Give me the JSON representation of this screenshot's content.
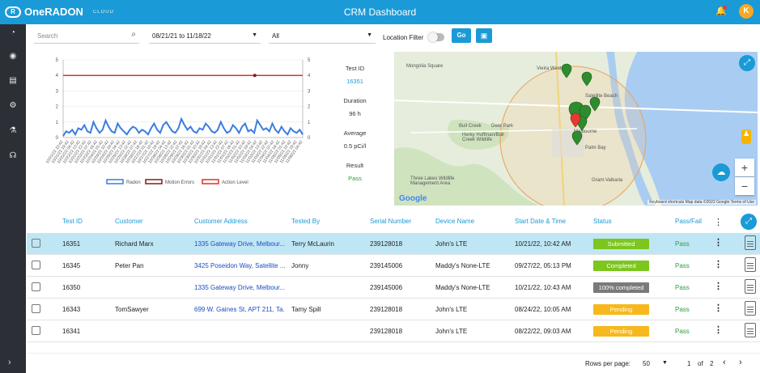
{
  "app": {
    "brand": "OneRADON",
    "brand_sub": "CLOUD",
    "title": "CRM Dashboard",
    "avatar_initial": "K"
  },
  "filters": {
    "search_placeholder": "Search",
    "date_range": "08/21/21 to 11/18/22",
    "select_value": "All",
    "location_filter_label": "Location Filter",
    "go_label": "Go"
  },
  "colors": {
    "accent": "#1a9ad6",
    "radon": "#3b7de0",
    "motion": "#7a1f1f",
    "action": "#e0302a",
    "submitted": "#7cc61f",
    "completed": "#7cc61f",
    "hundred": "#7a7a7a",
    "pending": "#f6b81c",
    "pass": "#2e9e3e"
  },
  "chart_data": {
    "type": "line",
    "title": "",
    "ylim": [
      0,
      5
    ],
    "yticks": [
      0,
      1,
      2,
      3,
      4,
      5
    ],
    "x_tick_labels": [
      "10/21/22 10:42",
      "10/21/22 19:42",
      "10/22/22 04:42",
      "10/22/22 13:42",
      "10/22/22 22:42",
      "10/23/22 07:42",
      "10/23/22 16:42",
      "10/24/22 01:42",
      "10/24/22 10:42",
      "10/24/22 19:42",
      "10/25/22 04:42",
      "10/25/22 13:42",
      "10/25/22 22:42",
      "10/26/22 07:42",
      "10/26/22 16:42",
      "10/27/22 01:42",
      "10/27/22 10:42",
      "10/27/22 19:42",
      "10/28/22 04:42",
      "10/28/22 13:42",
      "10/28/22 22:42",
      "10/29/22 07:42",
      "10/29/22 16:42",
      "10/30/22 01:42",
      "10/30/22 10:42",
      "10/30/22 19:42",
      "10/31/22 04:42",
      "10/31/22 13:42",
      "10/31/22 22:42",
      "11/01/22 07:42",
      "11/01/22 16:42",
      "11/02/22 01:42",
      "11/02/22 10:42",
      "11/02/22 19:42",
      "11/03/22 04:42",
      "11/03/22 13:42",
      "11/03/22 22:42",
      "11/04/22 07:42",
      "11/04/22 16:42",
      "11/05/22 01:42",
      "11/05/22 10:42",
      "11/05/22 19:42",
      "11/06/22 04:42"
    ],
    "series": [
      {
        "name": "Radon",
        "values": [
          0.1,
          0.4,
          0.3,
          0.5,
          0.2,
          0.6,
          0.5,
          0.8,
          0.4,
          0.3,
          1.0,
          0.6,
          0.3,
          0.5,
          1.1,
          0.7,
          0.4,
          0.3,
          0.9,
          0.6,
          0.4,
          0.2,
          0.5,
          0.7,
          0.6,
          0.3,
          0.5,
          0.4,
          0.2,
          0.6,
          0.9,
          0.5,
          0.3,
          0.8,
          1.0,
          0.7,
          0.4,
          0.3,
          0.6,
          1.2,
          0.8,
          0.5,
          0.7,
          0.4,
          0.3,
          0.6,
          0.5,
          0.9,
          0.7,
          0.4,
          0.3,
          0.5,
          1.0,
          0.6,
          0.3,
          0.4,
          0.8,
          0.6,
          0.3,
          0.7,
          0.9,
          0.4,
          0.5,
          0.3,
          1.1,
          0.8,
          0.5,
          0.6,
          0.4,
          0.9,
          0.5,
          0.3,
          0.7,
          0.4,
          0.2,
          0.6,
          0.4,
          0.3,
          0.5,
          0.2
        ]
      },
      {
        "name": "Motion Errors",
        "values": []
      },
      {
        "name": "Action Level",
        "values": [
          4,
          4
        ]
      }
    ],
    "marker": {
      "series": "Action Level",
      "x_fraction": 0.8,
      "y": 4
    }
  },
  "test": {
    "id_label": "Test ID",
    "id": "16351",
    "duration_label": "Duration",
    "duration": "96 h",
    "average_label": "Average",
    "average": "0.5 pCi/l",
    "result_label": "Result",
    "result": "Pass"
  },
  "map": {
    "labels": [
      "Mongolia Square",
      "Vieira West",
      "Satellite Beach",
      "Melbourne",
      "Palm Bay",
      "Bull Creek",
      "Deer Park",
      "Herky Huffman/Bull Creek Wildlife",
      "Three Lakes Wildlife Management Area",
      "Grant-Valkaria"
    ],
    "attribution": "Keyboard shortcuts   Map data ©2022 Google   Terms of Use",
    "google": "Google"
  },
  "table": {
    "headers": [
      "Test ID",
      "Customer",
      "Customer Address",
      "Tested By",
      "Serial Number",
      "Device Name",
      "Start Date & Time",
      "Status",
      "Pass/Fail"
    ],
    "rows": [
      {
        "id": "16351",
        "customer": "Richard Marx",
        "address": "1335 Gateway Drive, Melbour...",
        "tested_by": "Terry McLaurin",
        "serial": "239128018",
        "device": "John's LTE",
        "start": "10/21/22, 10:42 AM",
        "status": "Submitted",
        "status_color": "#7cc61f",
        "pass": "Pass"
      },
      {
        "id": "16345",
        "customer": "Peter Pan",
        "address": "3425 Poseidon Way, Satellite ...",
        "tested_by": "Jonny",
        "serial": "239145006",
        "device": "Maddy's None-LTE",
        "start": "09/27/22, 05:13 PM",
        "status": "Completed",
        "status_color": "#7cc61f",
        "pass": "Pass"
      },
      {
        "id": "16350",
        "customer": "",
        "address": "1335 Gateway Drive, Melbour...",
        "tested_by": "",
        "serial": "239145006",
        "device": "Maddy's None-LTE",
        "start": "10/21/22, 10:43 AM",
        "status": "100% completed",
        "status_color": "#7a7a7a",
        "pass": "Pass"
      },
      {
        "id": "16343",
        "customer": "TomSawyer",
        "address": "699 W. Gaines St, APT 211, Ta...",
        "tested_by": "Tamy Spill",
        "serial": "239128018",
        "device": "John's LTE",
        "start": "08/24/22, 10:05 AM",
        "status": "Pending",
        "status_color": "#f6b81c",
        "pass": "Pass"
      },
      {
        "id": "16341",
        "customer": "",
        "address": "",
        "tested_by": "",
        "serial": "239128018",
        "device": "John's LTE",
        "start": "08/22/22, 09:03 AM",
        "status": "Pending",
        "status_color": "#f6b81c",
        "pass": "Pass"
      }
    ]
  },
  "footer": {
    "rows_per_page_label": "Rows per page:",
    "rows_per_page": "50",
    "page": "1",
    "of_label": "of",
    "total_pages": "2"
  }
}
